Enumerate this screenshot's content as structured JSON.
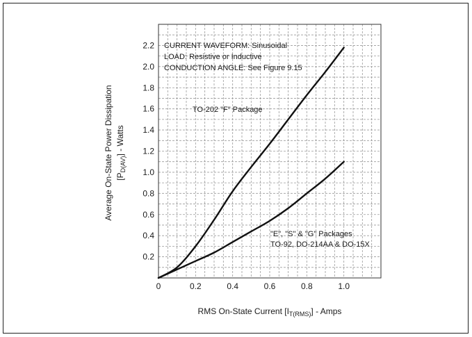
{
  "chart_data": {
    "type": "line",
    "xlabel_parts": {
      "main": "RMS On-State Current [I",
      "sub": "T(RMS)",
      "tail": "] - Amps"
    },
    "ylabel_parts": {
      "line1": "Average On-State Power Dissipation",
      "main": "[P",
      "sub": "D(AV)",
      "tail": "] - Watts"
    },
    "xlim": [
      0,
      1.2
    ],
    "ylim": [
      0,
      2.4
    ],
    "x_ticks": [
      {
        "value": 0,
        "label": "0"
      },
      {
        "value": 0.2,
        "label": "0.2"
      },
      {
        "value": 0.4,
        "label": "0.4"
      },
      {
        "value": 0.6,
        "label": "0.6"
      },
      {
        "value": 0.8,
        "label": "0.8"
      },
      {
        "value": 1.0,
        "label": "1.0"
      }
    ],
    "y_ticks": [
      {
        "value": 0.2,
        "label": "0.2"
      },
      {
        "value": 0.4,
        "label": "0.4"
      },
      {
        "value": 0.6,
        "label": "0.6"
      },
      {
        "value": 0.8,
        "label": "0.8"
      },
      {
        "value": 1.0,
        "label": "1.0"
      },
      {
        "value": 1.2,
        "label": "1.2"
      },
      {
        "value": 1.4,
        "label": "1.4"
      },
      {
        "value": 1.6,
        "label": "1.6"
      },
      {
        "value": 1.8,
        "label": "1.8"
      },
      {
        "value": 2.0,
        "label": "2.0"
      },
      {
        "value": 2.2,
        "label": "2.2"
      }
    ],
    "grid": true,
    "annotations": [
      "CURRENT WAVEFORM: Sinusoidal",
      "LOAD: Resistive or Inductive",
      "CONDUCTION ANGLE: See Figure 9.15"
    ],
    "series": [
      {
        "name": "TO-202 \"F\" Package",
        "x": [
          0,
          0.1,
          0.2,
          0.3,
          0.4,
          0.5,
          0.6,
          0.7,
          0.8,
          0.9,
          1.0
        ],
        "y": [
          0,
          0.1,
          0.3,
          0.55,
          0.82,
          1.05,
          1.27,
          1.5,
          1.73,
          1.95,
          2.18
        ]
      },
      {
        "name": "\"E\", \"S\" & \"G\" Packages / TO-92, DO-214AA & DO-15X",
        "x": [
          0,
          0.1,
          0.2,
          0.3,
          0.4,
          0.5,
          0.6,
          0.7,
          0.8,
          0.9,
          1.0
        ],
        "y": [
          0,
          0.08,
          0.16,
          0.24,
          0.34,
          0.44,
          0.54,
          0.66,
          0.8,
          0.94,
          1.1
        ]
      }
    ],
    "series_labels": {
      "upper": "TO-202 \"F\" Package",
      "lower_line1": "\"E\", \"S\" & \"G\" Packages",
      "lower_line2": "TO-92, DO-214AA & DO-15X"
    }
  }
}
